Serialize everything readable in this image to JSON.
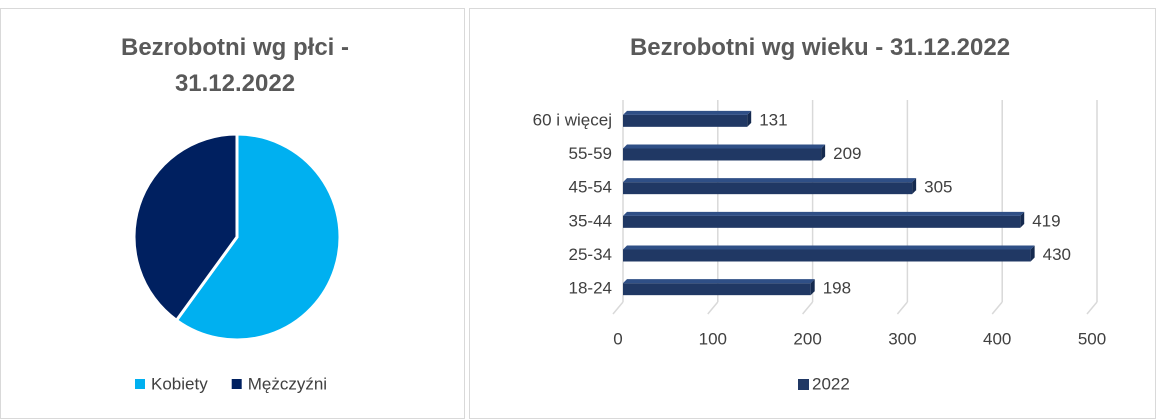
{
  "chart_data": [
    {
      "type": "pie",
      "title": "Bezrobotni wg płci - 31.12.2022",
      "categories": [
        "Kobiety",
        "Mężczyźni"
      ],
      "values": [
        60,
        40
      ],
      "colors": [
        "#00b0f0",
        "#002060"
      ],
      "legend": "bottom"
    },
    {
      "type": "bar",
      "title": "Bezrobotni wg wieku - 31.12.2022",
      "categories": [
        "18-24",
        "25-34",
        "35-44",
        "45-54",
        "55-59",
        "60 i więcej"
      ],
      "series": [
        {
          "name": "2022",
          "color": "#203864",
          "values": [
            198,
            430,
            419,
            305,
            209,
            131
          ]
        }
      ],
      "xlim": [
        0,
        500
      ],
      "xticks": [
        0,
        100,
        200,
        300,
        400,
        500
      ],
      "grid": true,
      "legend": "bottom"
    }
  ]
}
